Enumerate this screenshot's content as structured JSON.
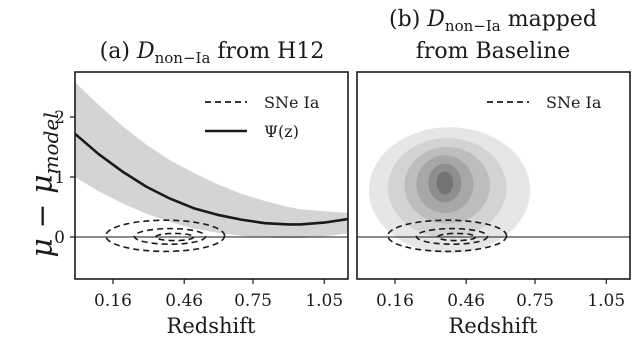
{
  "chart_data": [
    {
      "panel": "a",
      "type": "line",
      "title": "(a) D non−Ia from H12",
      "title_parts": {
        "prefix": "(a) ",
        "symbol": "D",
        "subscript": "non−Ia",
        "suffix": " from H12"
      },
      "xlabel": "Redshift",
      "ylabel": "μ − μmodel",
      "ylabel_parts": {
        "main": "μ − μ",
        "subscript": "model"
      },
      "xticks": [
        "0.16",
        "0.46",
        "0.75",
        "1.05"
      ],
      "yticks": [
        "0",
        "1",
        "2"
      ],
      "xlim": [
        0.0,
        1.15
      ],
      "ylim": [
        -0.7,
        2.75
      ],
      "horizontal_line_y": 0,
      "legend": {
        "position": "top-right",
        "entries": [
          "SNe Ia",
          "Ψ(z)"
        ]
      },
      "series": [
        {
          "name": "Ψ(z)",
          "style": "solid",
          "x": [
            0.0,
            0.1,
            0.2,
            0.3,
            0.4,
            0.5,
            0.6,
            0.7,
            0.8,
            0.9,
            0.95,
            1.05,
            1.15
          ],
          "y": [
            1.72,
            1.38,
            1.09,
            0.84,
            0.64,
            0.48,
            0.37,
            0.29,
            0.23,
            0.21,
            0.21,
            0.24,
            0.3
          ],
          "band_lower": [
            1.0,
            0.76,
            0.56,
            0.39,
            0.25,
            0.14,
            0.07,
            0.02,
            -0.01,
            -0.02,
            -0.02,
            0.01,
            0.06
          ],
          "band_upper": [
            2.58,
            2.2,
            1.85,
            1.54,
            1.28,
            1.07,
            0.88,
            0.72,
            0.6,
            0.5,
            0.46,
            0.43,
            0.4
          ]
        },
        {
          "name": "SNe Ia",
          "style": "dashed-contours",
          "contours": [
            {
              "cx": 0.42,
              "cy": 0.0,
              "rx": 0.08,
              "ry": 0.06
            },
            {
              "cx": 0.4,
              "cy": 0.01,
              "rx": 0.15,
              "ry": 0.13
            },
            {
              "cx": 0.38,
              "cy": 0.02,
              "rx": 0.25,
              "ry": 0.26
            }
          ]
        }
      ]
    },
    {
      "panel": "b",
      "type": "heatmap",
      "title": "(b) D non−Ia mapped from Baseline",
      "title_parts": {
        "prefix": "(b) ",
        "symbol": "D",
        "subscript": "non−Ia",
        "suffix": " mapped",
        "line2": "from Baseline"
      },
      "xlabel": "Redshift",
      "xticks": [
        "0.16",
        "0.46",
        "0.75",
        "1.05"
      ],
      "xlim": [
        0.0,
        1.15
      ],
      "ylim": [
        -0.7,
        2.75
      ],
      "horizontal_line_y": 0,
      "legend": {
        "position": "top-right",
        "entries": [
          "SNe Ia"
        ]
      },
      "density_levels": [
        {
          "cx": 0.39,
          "cy": 0.78,
          "rx": 0.34,
          "ry": 1.05,
          "color": "#e6e6e6"
        },
        {
          "cx": 0.38,
          "cy": 0.82,
          "rx": 0.25,
          "ry": 0.83,
          "color": "#d3d3d3"
        },
        {
          "cx": 0.38,
          "cy": 0.86,
          "rx": 0.18,
          "ry": 0.64,
          "color": "#bdbdbd"
        },
        {
          "cx": 0.37,
          "cy": 0.88,
          "rx": 0.12,
          "ry": 0.48,
          "color": "#a7a7a7"
        },
        {
          "cx": 0.37,
          "cy": 0.9,
          "rx": 0.07,
          "ry": 0.32,
          "color": "#8e8e8e"
        },
        {
          "cx": 0.37,
          "cy": 0.9,
          "rx": 0.035,
          "ry": 0.19,
          "color": "#747474"
        }
      ],
      "series": [
        {
          "name": "SNe Ia",
          "style": "dashed-contours",
          "contours": [
            {
              "cx": 0.42,
              "cy": 0.0,
              "rx": 0.08,
              "ry": 0.06
            },
            {
              "cx": 0.4,
              "cy": 0.01,
              "rx": 0.15,
              "ry": 0.13
            },
            {
              "cx": 0.38,
              "cy": 0.02,
              "rx": 0.25,
              "ry": 0.26
            }
          ]
        }
      ]
    }
  ]
}
